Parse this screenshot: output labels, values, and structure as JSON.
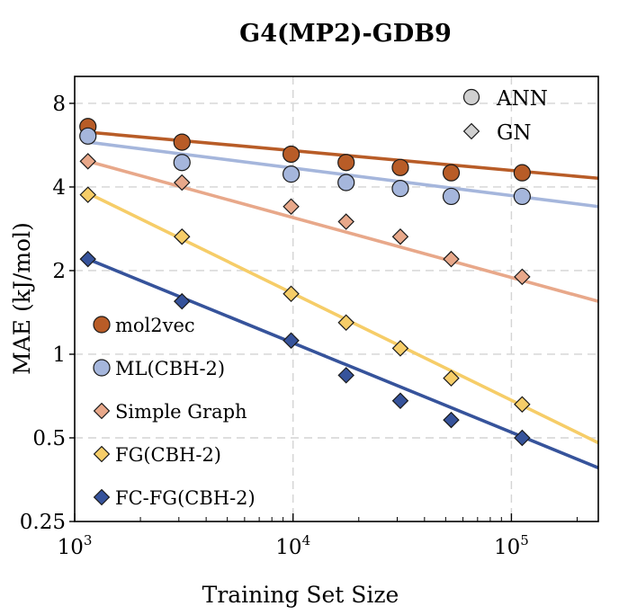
{
  "chart_data": {
    "type": "scatter",
    "title": "G4(MP2)-GDB9",
    "xlabel": "Training Set Size",
    "ylabel": "MAE (kJ/mol)",
    "x_scale": "log",
    "y_scale": "log",
    "xlim": [
      1000,
      250000
    ],
    "ylim": [
      0.25,
      10
    ],
    "grid": true,
    "x_ticks": [
      {
        "value": 1000,
        "base": "10",
        "exp": "3"
      },
      {
        "value": 10000,
        "base": "10",
        "exp": "4"
      },
      {
        "value": 100000,
        "base": "10",
        "exp": "5"
      }
    ],
    "y_ticks": [
      {
        "value": 0.25,
        "label": "0.25"
      },
      {
        "value": 0.5,
        "label": "0.5"
      },
      {
        "value": 1,
        "label": "1"
      },
      {
        "value": 2,
        "label": "2"
      },
      {
        "value": 4,
        "label": "4"
      },
      {
        "value": 8,
        "label": "8"
      }
    ],
    "marker_legend": [
      {
        "label": "ANN",
        "shape": "circle"
      },
      {
        "label": "GN",
        "shape": "diamond"
      }
    ],
    "series": [
      {
        "name": "mol2vec",
        "color": "#b85c27",
        "marker": "circle",
        "x": [
          1150,
          3100,
          9800,
          17500,
          31000,
          53000,
          112000
        ],
        "y": [
          6.6,
          5.8,
          5.25,
          4.9,
          4.7,
          4.5,
          4.5
        ],
        "fit": {
          "x": [
            1150,
            250000
          ],
          "y": [
            6.3,
            4.3
          ]
        }
      },
      {
        "name": "ML(CBH-2)",
        "color": "#a5b6dc",
        "marker": "circle",
        "x": [
          1150,
          3100,
          9800,
          17500,
          31000,
          53000,
          112000
        ],
        "y": [
          6.1,
          4.9,
          4.45,
          4.15,
          3.95,
          3.7,
          3.7
        ],
        "fit": {
          "x": [
            1150,
            250000
          ],
          "y": [
            5.8,
            3.4
          ]
        }
      },
      {
        "name": "Simple Graph",
        "color": "#e8a88a",
        "marker": "diamond",
        "x": [
          1150,
          3100,
          9800,
          17500,
          31000,
          53000,
          112000
        ],
        "y": [
          4.95,
          4.15,
          3.4,
          3.0,
          2.65,
          2.2,
          1.9
        ],
        "fit": {
          "x": [
            1150,
            250000
          ],
          "y": [
            4.95,
            1.55
          ]
        }
      },
      {
        "name": "FG(CBH-2)",
        "color": "#f6cd68",
        "marker": "diamond",
        "x": [
          1150,
          3100,
          9800,
          17500,
          31000,
          53000,
          112000
        ],
        "y": [
          3.75,
          2.65,
          1.65,
          1.3,
          1.05,
          0.82,
          0.66
        ],
        "fit": {
          "x": [
            1150,
            250000
          ],
          "y": [
            3.8,
            0.48
          ]
        }
      },
      {
        "name": "FC-FG(CBH-2)",
        "color": "#36539b",
        "marker": "diamond",
        "x": [
          1150,
          3100,
          9800,
          17500,
          31000,
          53000,
          112000
        ],
        "y": [
          2.2,
          1.55,
          1.12,
          0.84,
          0.68,
          0.58,
          0.5
        ],
        "fit": {
          "x": [
            1150,
            250000
          ],
          "y": [
            2.2,
            0.39
          ]
        }
      }
    ]
  }
}
